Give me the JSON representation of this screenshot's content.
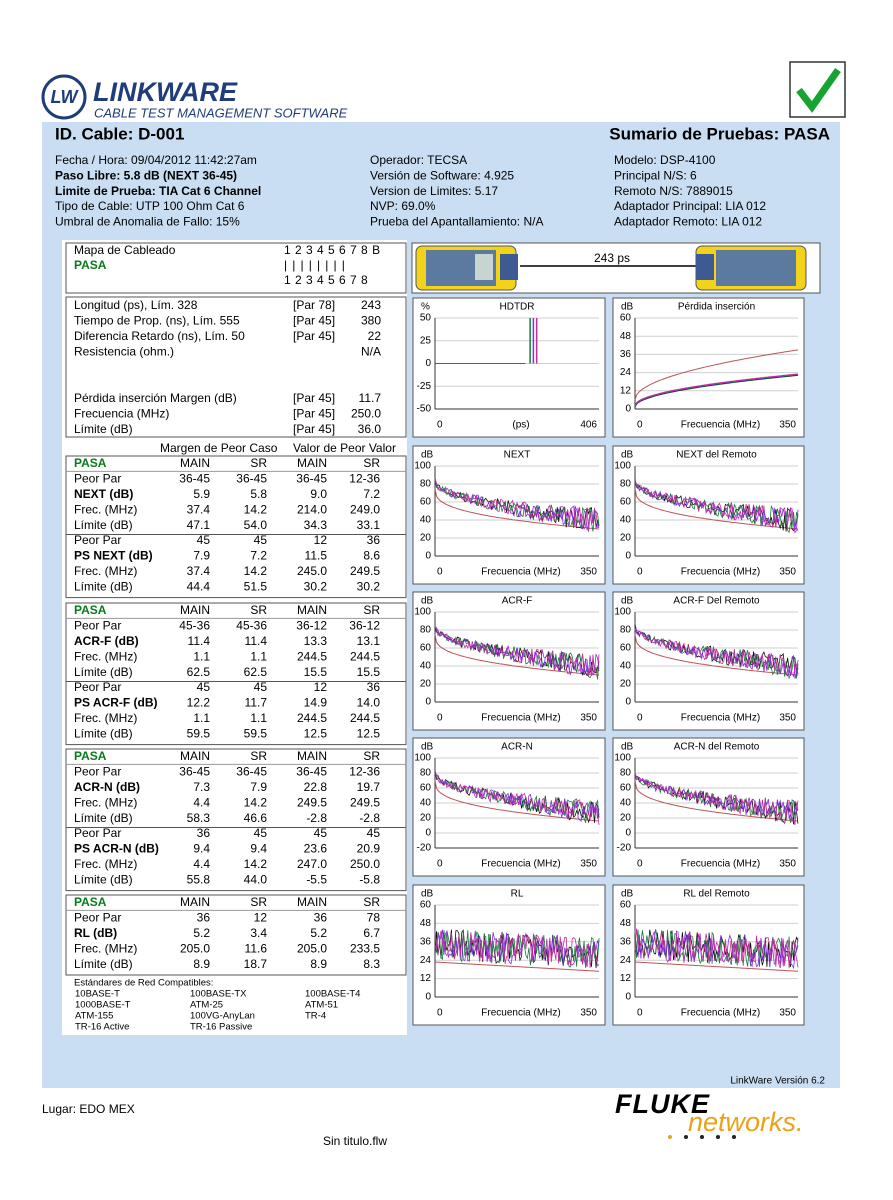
{
  "header": {
    "logo_title": "LinkWare",
    "logo_subtitle": "CABLE TEST MANAGEMENT SOFTWARE",
    "cable_id": "ID. Cable: D-001",
    "summary": "Sumario de Pruebas: PASA"
  },
  "info": [
    [
      "Fecha / Hora: 09/04/2012 11:42:27am",
      "Paso Libre: 5.8 dB (NEXT 36-45)",
      "Limite de Prueba: TIA Cat 6  Channel",
      "Tipo de Cable: UTP 100 Ohm Cat 6",
      "Umbral de Anomalia de Fallo: 15%"
    ],
    [
      "Operador: TECSA",
      "Versión de Software: 4.925",
      "Version de Limites: 5.17",
      "NVP: 69.0%",
      "Prueba del Apantallamiento: N/A"
    ],
    [
      "Modelo: DSP-4100",
      "Principal N/S: 6",
      "Remoto N/S: 7889015",
      "Adaptador Principal: LIA 012",
      "Adaptador Remoto: LIA 012"
    ]
  ],
  "wiremap": {
    "label": "Mapa de Cableado",
    "result": "PASA",
    "top": "1 2 3 4 5 6 7 8 B",
    "bars": "| | | | | | | |",
    "bottom": "1 2 3 4 5 6 7 8"
  },
  "device": {
    "delay": "243 ps"
  },
  "length_table": [
    [
      "Longitud (ps), Lím. 328",
      "[Par 78]",
      "243"
    ],
    [
      "Tiempo de Prop. (ns), Lím. 555",
      "[Par 45]",
      "380"
    ],
    [
      "Diferencia Retardo (ns), Lím. 50",
      "[Par 45]",
      "22"
    ],
    [
      "Resistencia (ohm.)",
      "N/A"
    ],
    [
      "Pérdida inserción Margen (dB)",
      "[Par 45]",
      "11.7"
    ],
    [
      "Frecuencia (MHz)",
      "[Par 45]",
      "250.0"
    ],
    [
      "Límite (dB)",
      "[Par 45]",
      "36.0"
    ]
  ],
  "column_groups": [
    "Margen de Peor Caso",
    "Valor de Peor Valor"
  ],
  "sections": [
    {
      "header": [
        "PASA",
        "MAIN",
        "SR",
        "MAIN",
        "SR"
      ],
      "rows": [
        [
          "Peor Par",
          "36-45",
          "36-45",
          "36-45",
          "12-36"
        ],
        [
          "NEXT (dB)",
          "5.9",
          "5.8",
          "9.0",
          "7.2"
        ],
        [
          "Frec. (MHz)",
          "37.4",
          "14.2",
          "214.0",
          "249.0"
        ],
        [
          "Límite (dB)",
          "47.1",
          "54.0",
          "34.3",
          "33.1"
        ],
        [
          "Peor Par",
          "45",
          "45",
          "12",
          "36"
        ],
        [
          "PS NEXT (dB)",
          "7.9",
          "7.2",
          "11.5",
          "8.6"
        ],
        [
          "Frec. (MHz)",
          "37.4",
          "14.2",
          "245.0",
          "249.5"
        ],
        [
          "Límite (dB)",
          "44.4",
          "51.5",
          "30.2",
          "30.2"
        ]
      ]
    },
    {
      "header": [
        "PASA",
        "MAIN",
        "SR",
        "MAIN",
        "SR"
      ],
      "rows": [
        [
          "Peor Par",
          "45-36",
          "45-36",
          "36-12",
          "36-12"
        ],
        [
          "ACR-F (dB)",
          "11.4",
          "11.4",
          "13.3",
          "13.1"
        ],
        [
          "Frec. (MHz)",
          "1.1",
          "1.1",
          "244.5",
          "244.5"
        ],
        [
          "Límite (dB)",
          "62.5",
          "62.5",
          "15.5",
          "15.5"
        ],
        [
          "Peor Par",
          "45",
          "45",
          "12",
          "36"
        ],
        [
          "PS ACR-F (dB)",
          "12.2",
          "11.7",
          "14.9",
          "14.0"
        ],
        [
          "Frec. (MHz)",
          "1.1",
          "1.1",
          "244.5",
          "244.5"
        ],
        [
          "Límite (dB)",
          "59.5",
          "59.5",
          "12.5",
          "12.5"
        ]
      ]
    },
    {
      "header": [
        "PASA",
        "MAIN",
        "SR",
        "MAIN",
        "SR"
      ],
      "rows": [
        [
          "Peor Par",
          "36-45",
          "36-45",
          "36-45",
          "12-36"
        ],
        [
          "ACR-N (dB)",
          "7.3",
          "7.9",
          "22.8",
          "19.7"
        ],
        [
          "Frec. (MHz)",
          "4.4",
          "14.2",
          "249.5",
          "249.5"
        ],
        [
          "Límite (dB)",
          "58.3",
          "46.6",
          "-2.8",
          "-2.8"
        ],
        [
          "Peor Par",
          "36",
          "45",
          "45",
          "45"
        ],
        [
          "PS ACR-N (dB)",
          "9.4",
          "9.4",
          "23.6",
          "20.9"
        ],
        [
          "Frec. (MHz)",
          "4.4",
          "14.2",
          "247.0",
          "250.0"
        ],
        [
          "Límite (dB)",
          "55.8",
          "44.0",
          "-5.5",
          "-5.8"
        ]
      ]
    },
    {
      "header": [
        "PASA",
        "MAIN",
        "SR",
        "MAIN",
        "SR"
      ],
      "rows": [
        [
          "Peor Par",
          "36",
          "12",
          "36",
          "78"
        ],
        [
          "RL (dB)",
          "5.2",
          "3.4",
          "5.2",
          "6.7"
        ],
        [
          "Frec. (MHz)",
          "205.0",
          "11.6",
          "205.0",
          "233.5"
        ],
        [
          "Límite (dB)",
          "8.9",
          "18.7",
          "8.9",
          "8.3"
        ]
      ]
    }
  ],
  "charts": [
    {
      "title": "HDTDR",
      "unit": "%",
      "yticks": [
        "50",
        "25",
        "0",
        "-25",
        "-50"
      ],
      "xlabels": [
        "0",
        "(ps)",
        "406"
      ]
    },
    {
      "title": "Pérdida inserción",
      "unit": "dB",
      "yticks": [
        "60",
        "48",
        "36",
        "24",
        "12",
        "0"
      ],
      "xlabels": [
        "0",
        "Frecuencia (MHz)",
        "350"
      ]
    },
    {
      "title": "NEXT",
      "unit": "dB",
      "yticks": [
        "100",
        "80",
        "60",
        "40",
        "20",
        "0"
      ],
      "xlabels": [
        "0",
        "Frecuencia (MHz)",
        "350"
      ]
    },
    {
      "title": "NEXT del Remoto",
      "unit": "dB",
      "yticks": [
        "100",
        "80",
        "60",
        "40",
        "20",
        "0"
      ],
      "xlabels": [
        "0",
        "Frecuencia (MHz)",
        "350"
      ]
    },
    {
      "title": "ACR-F",
      "unit": "dB",
      "yticks": [
        "100",
        "80",
        "60",
        "40",
        "20",
        "0"
      ],
      "xlabels": [
        "0",
        "Frecuencia (MHz)",
        "350"
      ]
    },
    {
      "title": "ACR-F Del Remoto",
      "unit": "dB",
      "yticks": [
        "100",
        "80",
        "60",
        "40",
        "20",
        "0"
      ],
      "xlabels": [
        "0",
        "Frecuencia (MHz)",
        "350"
      ]
    },
    {
      "title": "ACR-N",
      "unit": "dB",
      "yticks": [
        "100",
        "80",
        "60",
        "40",
        "20",
        "0",
        "-20"
      ],
      "xlabels": [
        "0",
        "Frecuencia (MHz)",
        "350"
      ]
    },
    {
      "title": "ACR-N del Remoto",
      "unit": "dB",
      "yticks": [
        "100",
        "80",
        "60",
        "40",
        "20",
        "0",
        "-20"
      ],
      "xlabels": [
        "0",
        "Frecuencia (MHz)",
        "350"
      ]
    },
    {
      "title": "RL",
      "unit": "dB",
      "yticks": [
        "60",
        "48",
        "36",
        "24",
        "12",
        "0"
      ],
      "xlabels": [
        "0",
        "Frecuencia (MHz)",
        "350"
      ]
    },
    {
      "title": "RL del Remoto",
      "unit": "dB",
      "yticks": [
        "60",
        "48",
        "36",
        "24",
        "12",
        "0"
      ],
      "xlabels": [
        "0",
        "Frecuencia (MHz)",
        "350"
      ]
    }
  ],
  "standards": {
    "title": "Estándares de Red Compatibles:",
    "items": [
      "10BASE-T",
      "100BASE-TX",
      "100BASE-T4",
      "1000BASE-T",
      "ATM-25",
      "ATM-51",
      "ATM-155",
      "100VG-AnyLan",
      "TR-4",
      "TR-16 Active",
      "TR-16 Passive"
    ]
  },
  "footer": {
    "version": "LinkWare Versión  6.2",
    "location": "Lugar: EDO MEX",
    "brand": "FLUKE",
    "brand_sub": "networks.",
    "filename": "Sin titulo.flw"
  }
}
